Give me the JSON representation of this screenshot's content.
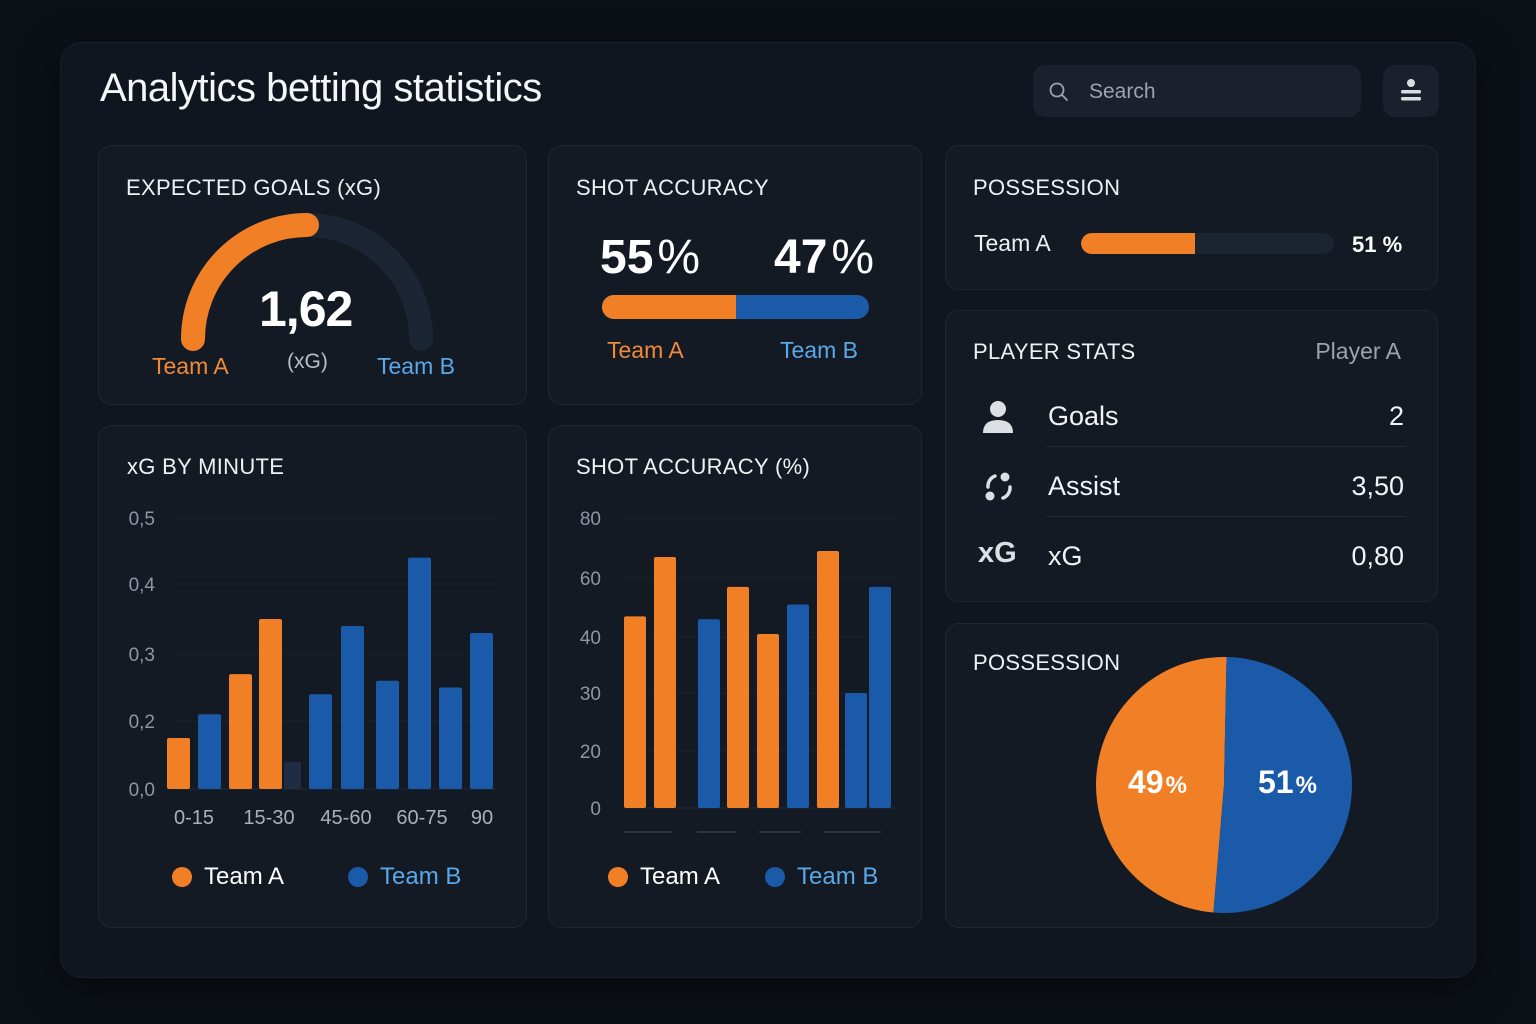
{
  "title": "Analytics betting statistics",
  "search": {
    "placeholder": "Search",
    "icon": "search-icon"
  },
  "menu_icon": "filter-menu-icon",
  "colors": {
    "team_a": "#f07f26",
    "team_b": "#1a5aa8",
    "muted": "#1f2d42",
    "background": "#10161f"
  },
  "expected_goals": {
    "title": "EXPECTED GOALS (xG)",
    "value": "1,62",
    "unit": "(xG)",
    "team_a": "Team A",
    "team_b": "Team B",
    "gauge_fill_fraction": 0.5
  },
  "shot_accuracy": {
    "title": "SHOT ACCURACY",
    "team_a_value": "55",
    "team_b_value": "47",
    "percent": "%",
    "team_a": "Team A",
    "team_b": "Team B",
    "team_a_fraction": 0.5
  },
  "possession_bar": {
    "title": "POSSESSION",
    "team": "Team A",
    "value": "51 %",
    "fill_fraction": 0.45
  },
  "player_stats": {
    "title": "PLAYER STATS",
    "player": "Player A",
    "rows": [
      {
        "icon": "user-icon",
        "label": "Goals",
        "value": "2"
      },
      {
        "icon": "assist-cycle-icon",
        "label": "Assist",
        "value": "3,50"
      },
      {
        "icon": "xg-icon",
        "icon_text": "xG",
        "label": "xG",
        "value": "0,80"
      }
    ]
  },
  "possession_pie": {
    "title": "POSSESSION",
    "team_a_value": "49",
    "team_b_value": "51",
    "percent": "%"
  },
  "legend": {
    "team_a": "Team A",
    "team_b": "Team B"
  },
  "chart_data": [
    {
      "type": "bar",
      "title": "xG BY MINUTE",
      "ylim": [
        0,
        0.5
      ],
      "y_ticks": [
        "0,0",
        "0,2",
        "0,3",
        "0,4",
        "0,5"
      ],
      "y_tick_values": [
        0,
        0.2,
        0.3,
        0.4,
        0.5
      ],
      "x_tick_labels": [
        "0-15",
        "15-30",
        "45-60",
        "60-75",
        "90"
      ],
      "grid": true,
      "legend": "bottom",
      "series_names": [
        "Team A",
        "Team B"
      ],
      "bars": [
        {
          "series": "Team A",
          "value": 0.15
        },
        {
          "series": "Team B",
          "value": 0.21
        },
        {
          "series": "Team A",
          "value": 0.27
        },
        {
          "series": "Team A",
          "value": 0.35
        },
        {
          "series": "muted",
          "value": 0.08
        },
        {
          "series": "Team B",
          "value": 0.24
        },
        {
          "series": "Team B",
          "value": 0.34
        },
        {
          "series": "Team B",
          "value": 0.26
        },
        {
          "series": "Team B",
          "value": 0.44
        },
        {
          "series": "Team B",
          "value": 0.25
        },
        {
          "series": "Team B",
          "value": 0.33
        }
      ]
    },
    {
      "type": "bar",
      "title": "SHOT ACCURACY (%)",
      "ylim": [
        0,
        80
      ],
      "y_ticks": [
        "0",
        "20",
        "30",
        "40",
        "60",
        "80"
      ],
      "y_tick_values": [
        0,
        20,
        30,
        40,
        60,
        80
      ],
      "grid": true,
      "legend": "bottom",
      "series_names": [
        "Team A",
        "Team B"
      ],
      "bars": [
        {
          "series": "Team A",
          "value": 47
        },
        {
          "series": "Team A",
          "value": 67
        },
        {
          "series": "Team B",
          "value": 46
        },
        {
          "series": "Team A",
          "value": 57
        },
        {
          "series": "Team A",
          "value": 41
        },
        {
          "series": "Team B",
          "value": 51
        },
        {
          "series": "Team A",
          "value": 69
        },
        {
          "series": "Team B",
          "value": 30
        },
        {
          "series": "Team B",
          "value": 57
        }
      ]
    }
  ]
}
